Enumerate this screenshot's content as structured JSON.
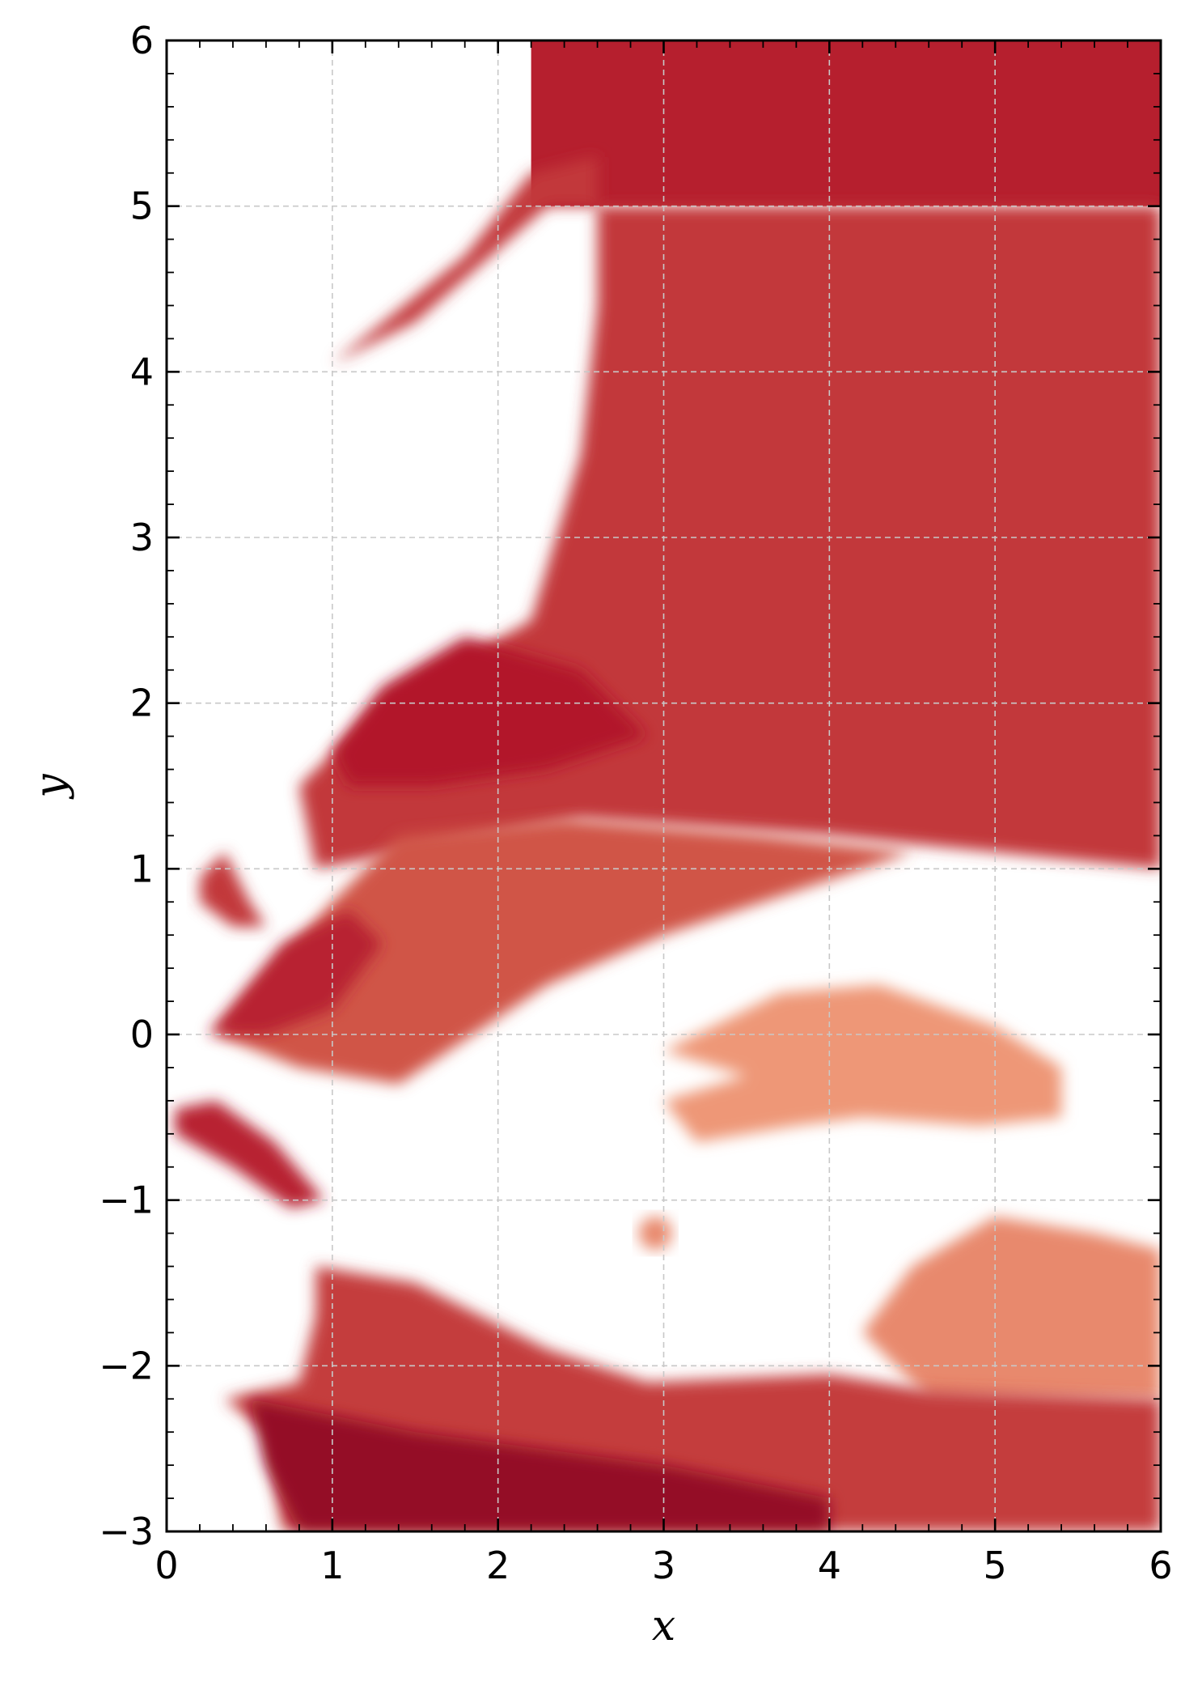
{
  "chart_data": {
    "type": "heatmap",
    "title": "",
    "xlabel": "x",
    "ylabel": "y",
    "xlim": [
      0,
      6
    ],
    "ylim": [
      -3,
      6
    ],
    "xticks": [
      0,
      1,
      2,
      3,
      4,
      5,
      6
    ],
    "yticks": [
      -3,
      -2,
      -1,
      0,
      1,
      2,
      3,
      4,
      5,
      6
    ],
    "xtick_labels": [
      "0",
      "1",
      "2",
      "3",
      "4",
      "5",
      "6"
    ],
    "ytick_labels": [
      "−3",
      "−2",
      "−1",
      "0",
      "1",
      "2",
      "3",
      "4",
      "5",
      "6"
    ],
    "grid": true,
    "colormap": "RdBu_r",
    "colorbar": false,
    "value_range": [
      -1,
      1
    ],
    "resolution_note": "adaptive cell sizes",
    "regions": [
      {
        "shape": "polygon",
        "value": 0.72,
        "points": [
          [
            2.2,
            6.0
          ],
          [
            6.0,
            6.0
          ],
          [
            6.0,
            5.0
          ],
          [
            2.2,
            5.0
          ]
        ]
      },
      {
        "shape": "polygon",
        "value": 0.62,
        "points": [
          [
            1.0,
            4.05
          ],
          [
            1.8,
            4.7
          ],
          [
            2.2,
            5.2
          ],
          [
            2.6,
            5.3
          ],
          [
            2.6,
            4.4
          ],
          [
            2.5,
            3.5
          ],
          [
            2.2,
            2.5
          ],
          [
            1.3,
            2.0
          ],
          [
            0.8,
            1.5
          ],
          [
            0.9,
            1.0
          ],
          [
            2.5,
            1.3
          ],
          [
            4.0,
            1.2
          ],
          [
            5.0,
            1.1
          ],
          [
            6.0,
            1.0
          ],
          [
            6.0,
            5.0
          ],
          [
            2.3,
            5.0
          ],
          [
            1.5,
            4.3
          ],
          [
            0.8,
            3.95
          ]
        ]
      },
      {
        "shape": "polygon",
        "value": 0.75,
        "points": [
          [
            1.0,
            1.7
          ],
          [
            1.3,
            2.1
          ],
          [
            1.8,
            2.4
          ],
          [
            2.5,
            2.2
          ],
          [
            2.9,
            1.8
          ],
          [
            2.3,
            1.6
          ],
          [
            1.6,
            1.5
          ],
          [
            1.1,
            1.5
          ]
        ]
      },
      {
        "shape": "polygon",
        "value": 0.5,
        "points": [
          [
            0.3,
            0.0
          ],
          [
            1.0,
            0.8
          ],
          [
            1.4,
            1.2
          ],
          [
            2.4,
            1.3
          ],
          [
            3.6,
            1.2
          ],
          [
            4.5,
            1.1
          ],
          [
            3.0,
            0.6
          ],
          [
            2.3,
            0.3
          ],
          [
            1.7,
            -0.1
          ],
          [
            1.4,
            -0.3
          ],
          [
            0.8,
            -0.2
          ]
        ]
      },
      {
        "shape": "polygon",
        "value": 0.7,
        "points": [
          [
            0.25,
            0.0
          ],
          [
            0.7,
            0.55
          ],
          [
            1.1,
            0.75
          ],
          [
            1.3,
            0.55
          ],
          [
            1.0,
            0.15
          ],
          [
            0.6,
            0.0
          ]
        ]
      },
      {
        "shape": "polygon",
        "value": 0.62,
        "points": [
          [
            0.2,
            0.95
          ],
          [
            0.35,
            1.1
          ],
          [
            0.5,
            0.8
          ],
          [
            0.6,
            0.65
          ],
          [
            0.4,
            0.65
          ],
          [
            0.2,
            0.8
          ]
        ]
      },
      {
        "shape": "polygon",
        "value": 0.7,
        "points": [
          [
            0.05,
            -0.45
          ],
          [
            0.3,
            -0.4
          ],
          [
            0.65,
            -0.65
          ],
          [
            0.95,
            -1.0
          ],
          [
            0.75,
            -1.05
          ],
          [
            0.4,
            -0.8
          ],
          [
            0.05,
            -0.6
          ]
        ]
      },
      {
        "shape": "polygon",
        "value": 0.25,
        "points": [
          [
            3.0,
            -0.1
          ],
          [
            3.7,
            0.25
          ],
          [
            4.3,
            0.3
          ],
          [
            5.0,
            0.05
          ],
          [
            5.4,
            -0.2
          ],
          [
            5.4,
            -0.5
          ],
          [
            4.9,
            -0.55
          ],
          [
            4.2,
            -0.5
          ],
          [
            3.8,
            -0.55
          ],
          [
            3.2,
            -0.65
          ],
          [
            3.0,
            -0.4
          ],
          [
            3.5,
            -0.25
          ]
        ]
      },
      {
        "shape": "polygon",
        "value": 0.3,
        "points": [
          [
            4.2,
            -1.8
          ],
          [
            4.5,
            -1.4
          ],
          [
            5.0,
            -1.1
          ],
          [
            5.6,
            -1.2
          ],
          [
            6.0,
            -1.3
          ],
          [
            6.0,
            -2.2
          ],
          [
            4.6,
            -2.2
          ]
        ]
      },
      {
        "shape": "polygon",
        "value": 0.6,
        "points": [
          [
            0.9,
            -1.4
          ],
          [
            1.5,
            -1.5
          ],
          [
            2.3,
            -1.9
          ],
          [
            2.9,
            -2.1
          ],
          [
            4.0,
            -2.05
          ],
          [
            4.6,
            -2.15
          ],
          [
            6.0,
            -2.2
          ],
          [
            6.0,
            -3.0
          ],
          [
            0.7,
            -3.0
          ],
          [
            0.6,
            -2.4
          ],
          [
            0.35,
            -2.2
          ],
          [
            0.8,
            -2.1
          ],
          [
            0.9,
            -1.7
          ]
        ]
      },
      {
        "shape": "polygon",
        "value": 0.85,
        "points": [
          [
            0.5,
            -2.2
          ],
          [
            1.5,
            -2.4
          ],
          [
            3.0,
            -2.6
          ],
          [
            4.0,
            -2.8
          ],
          [
            4.0,
            -3.0
          ],
          [
            0.8,
            -3.0
          ],
          [
            0.6,
            -2.6
          ]
        ]
      },
      {
        "shape": "ellipse",
        "value": 0.3,
        "cx": 2.95,
        "cy": -1.2,
        "rx": 0.1,
        "ry": 0.1
      }
    ]
  }
}
